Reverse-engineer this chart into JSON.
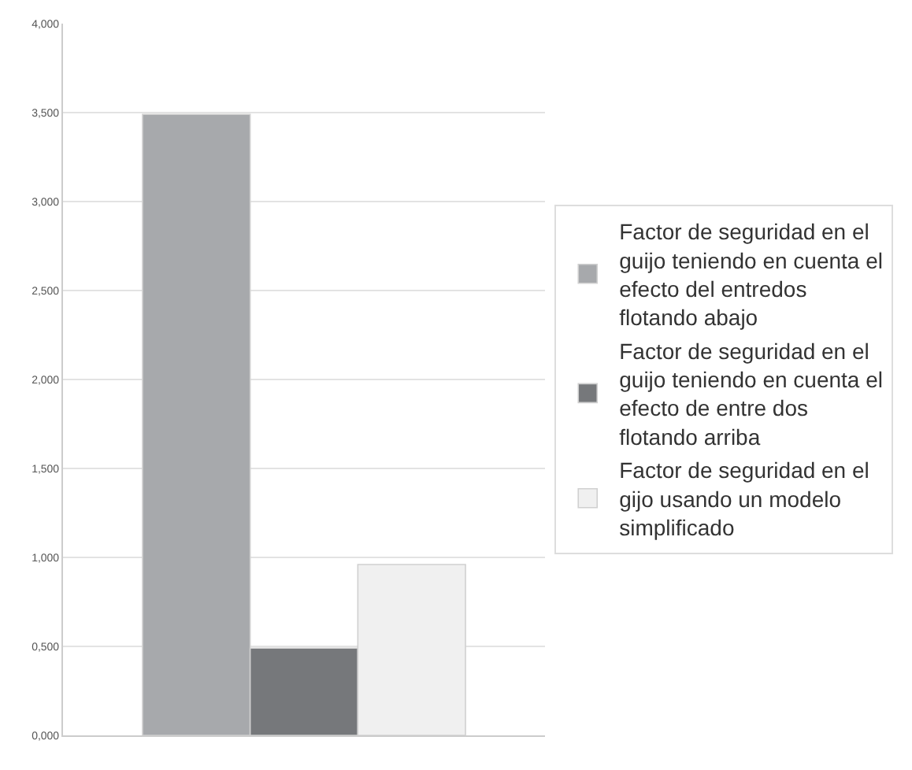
{
  "chart_data": {
    "type": "bar",
    "categories": [
      null
    ],
    "series": [
      {
        "name": "Factor de seguridad en el guijo teniendo en cuenta el efecto del entredos flotando abajo",
        "color": "#a7a9ac",
        "values": [
          3.49
        ]
      },
      {
        "name": "Factor de seguridad en el guijo teniendo en cuenta el efecto de entre dos flotando arriba",
        "color": "#76787b",
        "values": [
          0.49
        ]
      },
      {
        "name": "Factor de seguridad en el gijo usando un modelo simplificado",
        "color": "#f0f0f0",
        "values": [
          0.96
        ]
      }
    ],
    "ylim": [
      0,
      4
    ],
    "yticks": [
      {
        "value": 0,
        "label": "0,000"
      },
      {
        "value": 0.5,
        "label": "0,500"
      },
      {
        "value": 1,
        "label": "1,000"
      },
      {
        "value": 1.5,
        "label": "1,500"
      },
      {
        "value": 2,
        "label": "2,000"
      },
      {
        "value": 2.5,
        "label": "2,500"
      },
      {
        "value": 3,
        "label": "3,000"
      },
      {
        "value": 3.5,
        "label": "3,500"
      },
      {
        "value": 4,
        "label": "4,000"
      }
    ],
    "grid": "y",
    "legend": "right"
  }
}
